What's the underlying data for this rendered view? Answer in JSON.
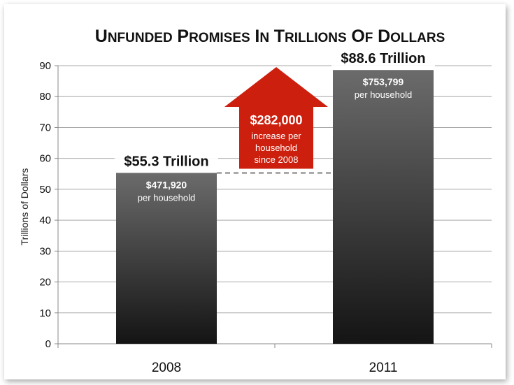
{
  "chart_data": {
    "type": "bar",
    "title": "Unfunded Promises in Trillions of Dollars",
    "xlabel": "",
    "ylabel": "Trillions of Dollars",
    "ylim": [
      0,
      90
    ],
    "yticks": [
      "0",
      "10",
      "20",
      "30",
      "40",
      "50",
      "60",
      "70",
      "80",
      "90"
    ],
    "categories": [
      "2008",
      "2011"
    ],
    "values": [
      55.3,
      88.6
    ],
    "grid": true,
    "bar_labels": [
      "$55.3 Trillion",
      "$88.6 Trillion"
    ],
    "bar_inner_amounts": [
      "$471,920",
      "$753,799"
    ],
    "bar_inner_captions": [
      "per household",
      "per household"
    ],
    "annotation": {
      "amount": "$282,000",
      "line1": "increase per",
      "line2": "household",
      "line3": "since 2008",
      "color": "#cc1f0d"
    },
    "bar_color_top": "#6b6b6b",
    "bar_color_bottom": "#141414"
  }
}
